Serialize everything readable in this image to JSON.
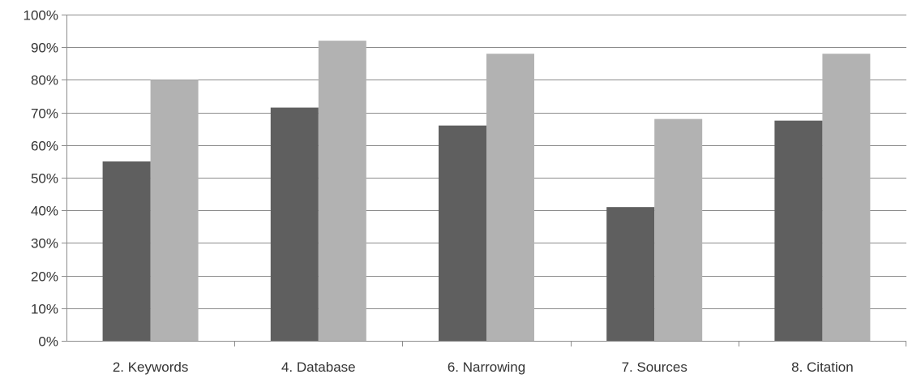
{
  "chart_data": {
    "type": "bar",
    "title": "",
    "xlabel": "",
    "ylabel": "",
    "categories": [
      "2. Keywords",
      "4. Database",
      "6. Narrowing",
      "7. Sources",
      "8. Citation"
    ],
    "series": [
      {
        "values": [
          55,
          71.5,
          66,
          41,
          67.5
        ],
        "color": "#5f5f5f"
      },
      {
        "values": [
          80,
          92,
          88,
          68,
          88
        ],
        "color": "#b2b2b2"
      }
    ],
    "ylim": [
      0,
      100
    ],
    "yticks": [
      "0%",
      "10%",
      "20%",
      "30%",
      "40%",
      "50%",
      "60%",
      "70%",
      "80%",
      "90%",
      "100%"
    ],
    "grid": true,
    "legend": "none"
  }
}
